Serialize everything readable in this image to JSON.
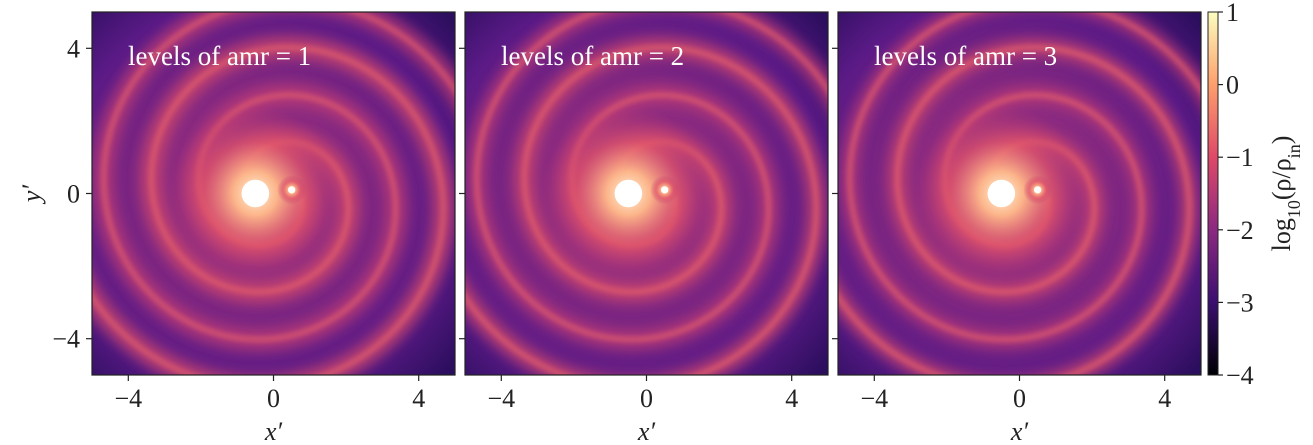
{
  "chart_data": [
    {
      "type": "heatmap",
      "annotation": "levels of amr = 1",
      "xlabel": "x′",
      "ylabel": "y′",
      "xlim": [
        -5,
        5
      ],
      "ylim": [
        -5,
        5
      ],
      "xticks": [
        {
          "value": -4,
          "label": "−4"
        },
        0,
        4
      ],
      "yticks": [
        {
          "value": -4,
          "label": "−4"
        },
        0,
        4
      ]
    },
    {
      "type": "heatmap",
      "annotation": "levels of amr = 2",
      "xlabel": "x′",
      "xlim": [
        -5,
        5
      ],
      "ylim": [
        -5,
        5
      ],
      "xticks": [
        {
          "value": -4,
          "label": "−4"
        },
        0,
        4
      ],
      "yticks": [
        -4,
        0,
        4
      ],
      "show_ytick_labels": false
    },
    {
      "type": "heatmap",
      "annotation": "levels of amr = 3",
      "xlabel": "x′",
      "xlim": [
        -5,
        5
      ],
      "ylim": [
        -5,
        5
      ],
      "xticks": [
        {
          "value": -4,
          "label": "−4"
        },
        0,
        4
      ],
      "yticks": [
        -4,
        0,
        4
      ],
      "show_ytick_labels": false,
      "colorbar": {
        "label": [
          {
            "text": "log"
          },
          {
            "text": "10",
            "sub": true
          },
          {
            "text": "(ρ/ρ"
          },
          {
            "text": "in",
            "sub": true
          },
          {
            "text": ")"
          }
        ],
        "lim": [
          -4,
          1
        ],
        "ticks": [
          {
            "value": -4,
            "label": "−4"
          },
          {
            "value": -3,
            "label": "−3"
          },
          {
            "value": -2,
            "label": "−2"
          },
          {
            "value": -1,
            "label": "−1"
          },
          0,
          1
        ],
        "colormap": [
          "#000004",
          "#3b0f70",
          "#8c2981",
          "#de4968",
          "#fe9f6d",
          "#fcfdbf"
        ]
      }
    }
  ]
}
